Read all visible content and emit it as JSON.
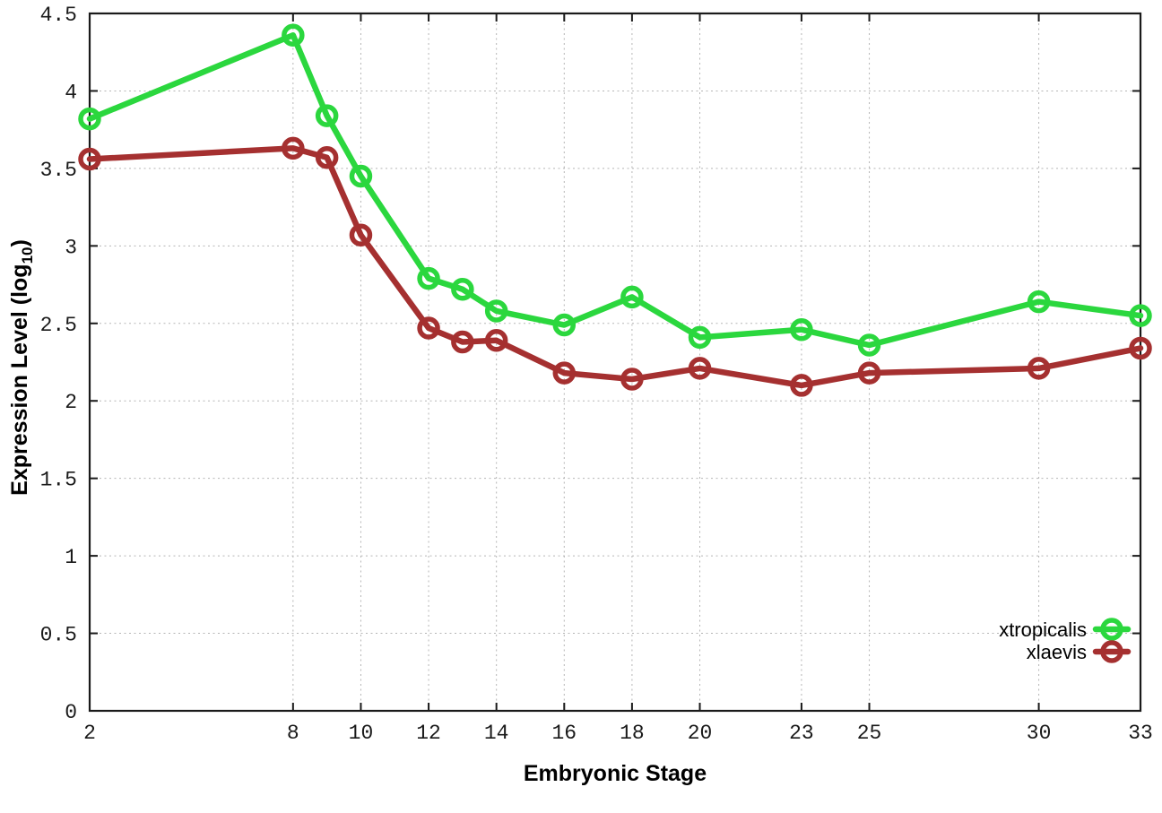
{
  "figure": {
    "background": "#ffffff",
    "axis_color": "#1a1a1a",
    "grid_color": "#b5b5b5"
  },
  "chart_data": {
    "type": "line",
    "title": "",
    "xlabel": "Embryonic Stage",
    "ylabel": "Expression Level (log10)",
    "ylabel_parts": {
      "pre": "Expression Level (log",
      "sub": "10",
      "post": ")"
    },
    "x": [
      2,
      8,
      9,
      10,
      12,
      13,
      14,
      16,
      18,
      20,
      23,
      25,
      30,
      33
    ],
    "xlim": [
      2,
      33
    ],
    "ylim": [
      0,
      4.5
    ],
    "xticks": [
      2,
      8,
      10,
      12,
      14,
      16,
      18,
      20,
      23,
      25,
      30,
      33
    ],
    "yticks": [
      0,
      0.5,
      1,
      1.5,
      2,
      2.5,
      3,
      3.5,
      4,
      4.5
    ],
    "grid": true,
    "legend_position": "bottom-right",
    "marker": "open-circle",
    "series": [
      {
        "name": "xtropicalis",
        "color": "#2bd73e",
        "values": [
          3.82,
          4.36,
          3.84,
          3.45,
          2.79,
          2.72,
          2.58,
          2.49,
          2.67,
          2.41,
          2.46,
          2.36,
          2.64,
          2.55
        ]
      },
      {
        "name": "xlaevis",
        "color": "#a53030",
        "values": [
          3.56,
          3.63,
          3.57,
          3.07,
          2.47,
          2.38,
          2.39,
          2.18,
          2.14,
          2.21,
          2.1,
          2.18,
          2.21,
          2.34
        ]
      }
    ]
  }
}
